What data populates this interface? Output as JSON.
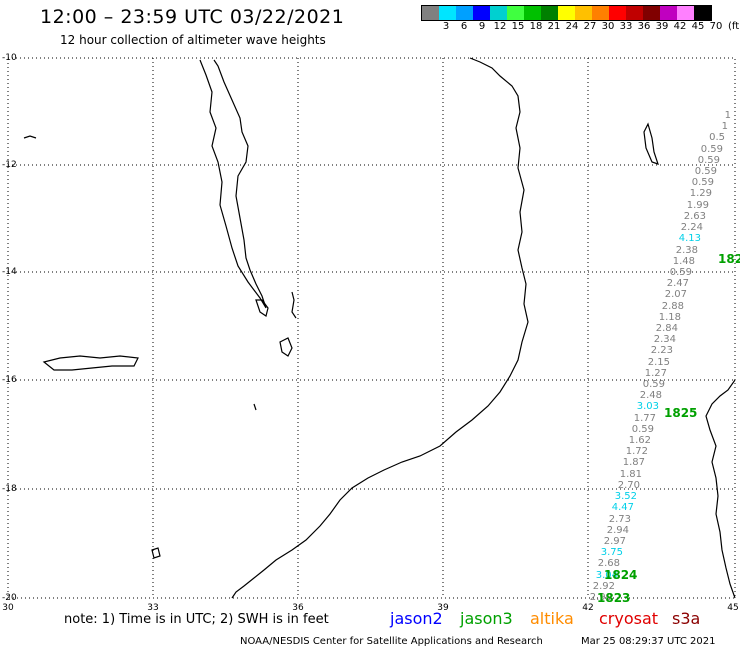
{
  "header": {
    "title": "12:00 – 23:59 UTC 03/22/2021",
    "subtitle": "12 hour collection of altimeter wave heights"
  },
  "color_scale": {
    "unit": "(ft)",
    "swatches": [
      {
        "label": "",
        "color": "#808080"
      },
      {
        "label": "3",
        "color": "#00e5ff"
      },
      {
        "label": "6",
        "color": "#00a0ff"
      },
      {
        "label": "9",
        "color": "#0000ff"
      },
      {
        "label": "12",
        "color": "#00d0d0"
      },
      {
        "label": "15",
        "color": "#40ff40"
      },
      {
        "label": "18",
        "color": "#00c000"
      },
      {
        "label": "21",
        "color": "#008000"
      },
      {
        "label": "24",
        "color": "#ffff00"
      },
      {
        "label": "27",
        "color": "#ffc000"
      },
      {
        "label": "30",
        "color": "#ff8000"
      },
      {
        "label": "33",
        "color": "#ff0000"
      },
      {
        "label": "36",
        "color": "#c00000"
      },
      {
        "label": "39",
        "color": "#800000"
      },
      {
        "label": "42",
        "color": "#c000c0"
      },
      {
        "label": "45",
        "color": "#ff80ff"
      },
      {
        "label": "70",
        "color": "#000000"
      }
    ]
  },
  "axes": {
    "lat_labels": [
      "-10",
      "-12",
      "-14",
      "-16",
      "-18",
      "-20"
    ],
    "lon_labels": [
      "30",
      "33",
      "36",
      "39",
      "42",
      "45"
    ]
  },
  "observations": [
    {
      "text": "1",
      "hi": false
    },
    {
      "text": "1",
      "hi": false
    },
    {
      "text": "0.5",
      "hi": false
    },
    {
      "text": "0.59",
      "hi": false
    },
    {
      "text": "0.59",
      "hi": false
    },
    {
      "text": "0.59",
      "hi": false
    },
    {
      "text": "0.59",
      "hi": false
    },
    {
      "text": "1.29",
      "hi": false
    },
    {
      "text": "1.99",
      "hi": false
    },
    {
      "text": "2.63",
      "hi": false
    },
    {
      "text": "2.24",
      "hi": false
    },
    {
      "text": "4.13",
      "hi": true
    },
    {
      "text": "2.38",
      "hi": false
    },
    {
      "text": "1.48",
      "hi": false
    },
    {
      "text": "0.59",
      "hi": false
    },
    {
      "text": "2.47",
      "hi": false
    },
    {
      "text": "2.07",
      "hi": false
    },
    {
      "text": "2.88",
      "hi": false
    },
    {
      "text": "1.18",
      "hi": false
    },
    {
      "text": "2.84",
      "hi": false
    },
    {
      "text": "2.34",
      "hi": false
    },
    {
      "text": "2.23",
      "hi": false
    },
    {
      "text": "2.15",
      "hi": false
    },
    {
      "text": "1.27",
      "hi": false
    },
    {
      "text": "0.59",
      "hi": false
    },
    {
      "text": "2.48",
      "hi": false
    },
    {
      "text": "3.03",
      "hi": true
    },
    {
      "text": "1.77",
      "hi": false
    },
    {
      "text": "0.59",
      "hi": false
    },
    {
      "text": "1.62",
      "hi": false
    },
    {
      "text": "1.72",
      "hi": false
    },
    {
      "text": "1.87",
      "hi": false
    },
    {
      "text": "1.81",
      "hi": false
    },
    {
      "text": "2.70",
      "hi": false
    },
    {
      "text": "3.52",
      "hi": true
    },
    {
      "text": "4.47",
      "hi": true
    },
    {
      "text": "2.73",
      "hi": false
    },
    {
      "text": "2.94",
      "hi": false
    },
    {
      "text": "2.97",
      "hi": false
    },
    {
      "text": "3.75",
      "hi": true
    },
    {
      "text": "2.68",
      "hi": false
    },
    {
      "text": "3.04",
      "hi": true
    },
    {
      "text": "2.92",
      "hi": false
    },
    {
      "text": "2.90",
      "hi": false
    }
  ],
  "pass_labels": [
    "182",
    "1825",
    "1824",
    "1823"
  ],
  "footer": {
    "note": "note: 1) Time is in UTC; 2) SWH is in feet",
    "satellites": [
      {
        "name": "jason2",
        "color": "#0000ff"
      },
      {
        "name": "jason3",
        "color": "#00a000"
      },
      {
        "name": "altika",
        "color": "#ff8c00"
      },
      {
        "name": "cryosat",
        "color": "#e00000"
      },
      {
        "name": "s3a",
        "color": "#8b0000"
      }
    ],
    "credit": "NOAA/NESDIS Center for Satellite Applications and Research",
    "timestamp": "Mar 25 08:29:37 UTC 2021"
  }
}
